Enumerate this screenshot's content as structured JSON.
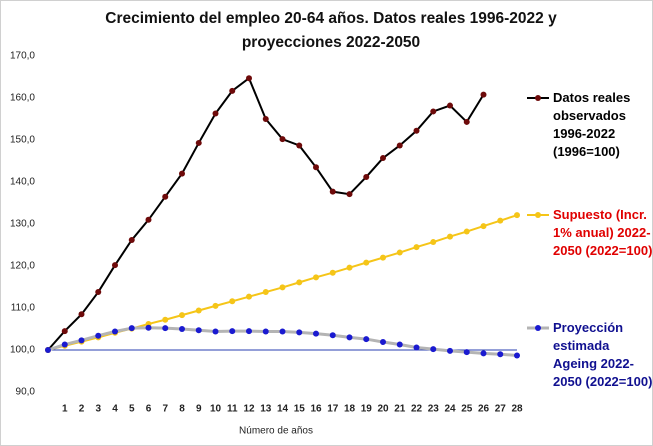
{
  "chart_data": {
    "type": "line",
    "title": "Crecimiento del empleo 20-64 años. Datos reales 1996-2022 y proyecciones 2022-2050",
    "x_label": "Número de años",
    "x": [
      0,
      1,
      2,
      3,
      4,
      5,
      6,
      7,
      8,
      9,
      10,
      11,
      12,
      13,
      14,
      15,
      16,
      17,
      18,
      19,
      20,
      21,
      22,
      23,
      24,
      25,
      26,
      27,
      28
    ],
    "xlim": [
      0,
      28
    ],
    "xticks": [
      1,
      2,
      3,
      4,
      5,
      6,
      7,
      8,
      9,
      10,
      11,
      12,
      13,
      14,
      15,
      16,
      17,
      18,
      19,
      20,
      21,
      22,
      23,
      24,
      25,
      26,
      27,
      28
    ],
    "ylim": [
      90,
      170
    ],
    "yticks": [
      {
        "value": 90,
        "label": "90,0"
      },
      {
        "value": 100,
        "label": "100,0"
      },
      {
        "value": 110,
        "label": "110,0"
      },
      {
        "value": 120,
        "label": "120,0"
      },
      {
        "value": 130,
        "label": "130,0"
      },
      {
        "value": 140,
        "label": "140,0"
      },
      {
        "value": 150,
        "label": "150,0"
      },
      {
        "value": 160,
        "label": "160,0"
      },
      {
        "value": 170,
        "label": "170,0"
      }
    ],
    "baseline": 100,
    "series": [
      {
        "name": "Datos reales observados 1996-2022 (1996=100)",
        "color": "#000000",
        "marker_color": "#6e0a0a",
        "label_color": "#000000",
        "values": [
          100,
          104.5,
          108.5,
          113.8,
          120.2,
          126.2,
          131.0,
          136.5,
          142.0,
          149.3,
          156.3,
          161.7,
          164.7,
          155.0,
          150.2,
          148.7,
          143.5,
          137.7,
          137.1,
          141.2,
          145.7,
          148.7,
          152.2,
          156.8,
          158.2,
          154.3,
          160.8,
          null,
          null
        ]
      },
      {
        "name": "Supuesto (Incr. 1% anual) 2022-2050 (2022=100)",
        "color": "#f5c518",
        "marker_color": "#f5c518",
        "label_color": "#e00000",
        "values": [
          100,
          101,
          102,
          103,
          104.1,
          105.1,
          106.2,
          107.2,
          108.3,
          109.4,
          110.5,
          111.6,
          112.7,
          113.8,
          114.9,
          116.1,
          117.3,
          118.4,
          119.6,
          120.8,
          122,
          123.2,
          124.5,
          125.7,
          127,
          128.2,
          129.5,
          130.8,
          132.1
        ]
      },
      {
        "name": "Proyección estimada Ageing 2022-2050 (2022=100)",
        "color": "#b4b4b4",
        "marker_color": "#1a1ad0",
        "label_color": "#101090",
        "values": [
          100,
          101.3,
          102.3,
          103.4,
          104.4,
          105.2,
          105.3,
          105.2,
          105.0,
          104.7,
          104.4,
          104.5,
          104.5,
          104.4,
          104.4,
          104.2,
          103.9,
          103.5,
          103.0,
          102.6,
          101.9,
          101.3,
          100.6,
          100.2,
          99.8,
          99.5,
          99.2,
          99.0,
          98.7
        ]
      }
    ]
  }
}
